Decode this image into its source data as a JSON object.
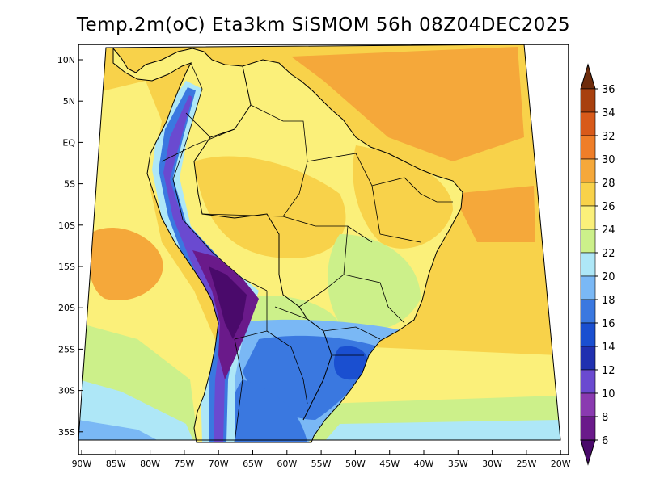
{
  "title": "Temp.2m(oC) Eta3km SiSMOM 56h 08Z04DEC2025",
  "map": {
    "variable": "2 m air temperature",
    "units": "oC",
    "model": "Eta3km SiSMOM",
    "forecast_hour": "56h",
    "valid_time": "08Z04DEC2025",
    "lat_ticks": [
      "10N",
      "5N",
      "EQ",
      "5S",
      "10S",
      "15S",
      "20S",
      "25S",
      "30S",
      "35S"
    ],
    "lon_ticks": [
      "90W",
      "85W",
      "80W",
      "75W",
      "70W",
      "65W",
      "60W",
      "55W",
      "50W",
      "45W",
      "40W",
      "35W",
      "30W",
      "25W",
      "20W"
    ],
    "colors": {
      "c_lt6": "#4a0a6b",
      "c_6_8": "#6a1a8a",
      "c_8_10": "#8a3ab0",
      "c_10_12": "#6a4ad0",
      "c_12_14": "#2030b0",
      "c_14_16": "#1a4fd0",
      "c_16_18": "#3a78e0",
      "c_18_20": "#7ab8f5",
      "c_20_22": "#aee7f7",
      "c_22_24": "#ccf08a",
      "c_24_26": "#fbf07a",
      "c_26_28": "#f8d24a",
      "c_28_30": "#f5a83a",
      "c_30_32": "#ef7e28",
      "c_32_34": "#d85a1a",
      "c_34_36": "#a8400f",
      "c_gt36": "#6e2c0c"
    }
  },
  "colorbar": {
    "labels": [
      "36",
      "34",
      "32",
      "30",
      "28",
      "26",
      "24",
      "22",
      "20",
      "18",
      "16",
      "14",
      "12",
      "10",
      "8",
      "6"
    ],
    "colors": [
      "#6e2c0c",
      "#a8400f",
      "#d85a1a",
      "#ef7e28",
      "#f5a83a",
      "#f8d24a",
      "#fbf07a",
      "#ccf08a",
      "#aee7f7",
      "#7ab8f5",
      "#3a78e0",
      "#1a4fd0",
      "#2030b0",
      "#6a4ad0",
      "#8a3ab0",
      "#6a1a8a",
      "#4a0a6b"
    ]
  }
}
